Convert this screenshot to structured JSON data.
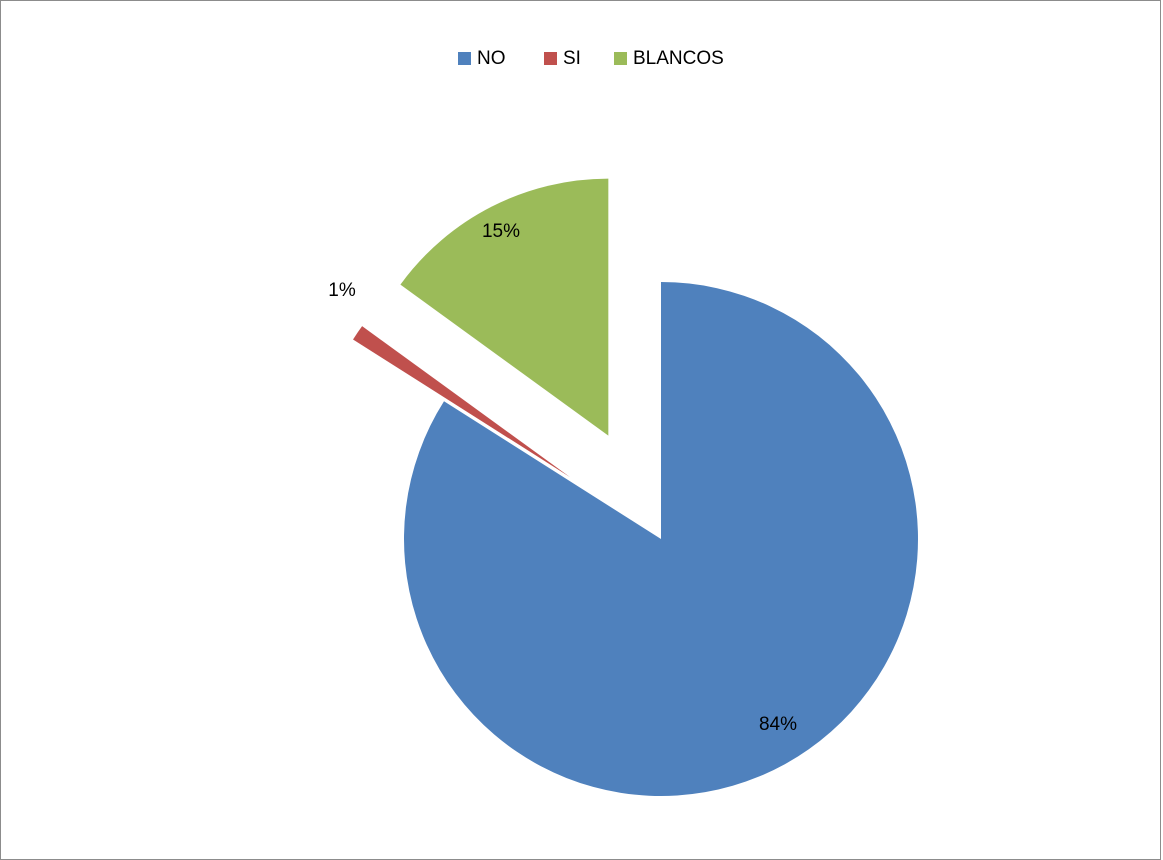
{
  "chart_data": {
    "type": "pie",
    "title": "",
    "legend_position": "top",
    "categories": [
      "NO",
      "SI",
      "BLANCOS"
    ],
    "values": [
      84,
      1,
      15
    ],
    "labels": [
      "84%",
      "1%",
      "15%"
    ],
    "colors": [
      "#4F81BD",
      "#C0504D",
      "#9BBB59"
    ],
    "exploded": true
  }
}
